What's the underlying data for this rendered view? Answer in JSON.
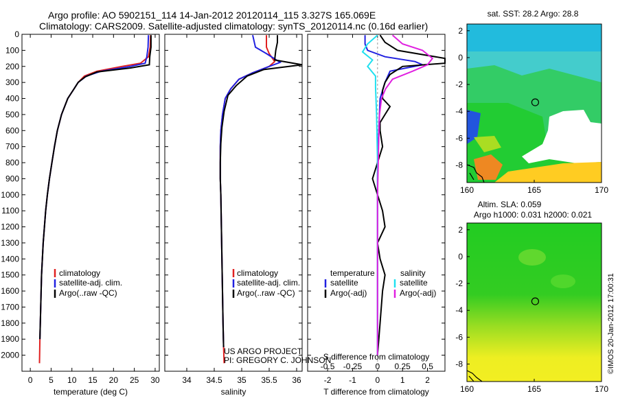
{
  "header": {
    "line1": "Argo profile: AO 5902151_114 14-Jan-2012 20120114_115 3.327S 165.069E",
    "line2": "Climatology: CARS2009. Satellite-adjusted climatology: synTS_20120114.nc (0.16d earlier)"
  },
  "side_label": "©IMOS 20-Jan-2012 17:00:31",
  "credit": {
    "project": "US ARGO PROJECT",
    "pi": "PI: GREGORY C. JOHNSON"
  },
  "colors": {
    "climatology": "#e02020",
    "satellite": "#2020e0",
    "argo": "#000000",
    "sal_sat": "#20e0f0",
    "sal_argo": "#e020e0"
  },
  "chart_data": [
    {
      "type": "line",
      "name": "temperature",
      "xlabel": "temperature (deg C)",
      "xlim": [
        -2,
        31
      ],
      "xticks": [
        "0",
        "5",
        "10",
        "15",
        "20",
        "25",
        "30"
      ],
      "xtick_values": [
        0,
        5,
        10,
        15,
        20,
        25,
        30
      ],
      "ylim": [
        2100,
        0
      ],
      "yticks": [
        "0",
        "100",
        "200",
        "300",
        "400",
        "500",
        "600",
        "700",
        "800",
        "900",
        "1000",
        "1100",
        "1200",
        "1300",
        "1400",
        "1500",
        "1600",
        "1700",
        "1800",
        "1900",
        "2000"
      ],
      "ytick_values": [
        0,
        100,
        200,
        300,
        400,
        500,
        600,
        700,
        800,
        900,
        1000,
        1100,
        1200,
        1300,
        1400,
        1500,
        1600,
        1700,
        1800,
        1900,
        2000
      ],
      "legend": [
        "climatology",
        "satellite-adj. clim.",
        "Argo(..raw -QC)"
      ],
      "series": [
        {
          "name": "climatology",
          "color": "#e02020",
          "x": [
            28.9,
            28.8,
            28.4,
            26.5,
            22,
            16,
            13,
            11.5,
            10.5,
            9,
            7.5,
            6.5,
            5.8,
            5.2,
            4.6,
            4.1,
            3.7,
            3.4,
            3.1,
            2.9,
            2.7,
            2.5,
            2.3,
            2.2
          ],
          "y": [
            5,
            80,
            140,
            180,
            200,
            230,
            260,
            300,
            340,
            400,
            500,
            600,
            700,
            800,
            900,
            1000,
            1100,
            1200,
            1300,
            1400,
            1500,
            1700,
            1900,
            2050
          ]
        },
        {
          "name": "satellite-adj. clim.",
          "color": "#2020e0",
          "x": [
            28.4,
            28.3,
            28.0,
            27.6,
            24,
            17,
            13.5,
            11.5,
            10.5,
            9,
            7.5,
            6.5,
            5.8,
            5.2,
            4.6,
            4.1,
            3.7,
            3.4,
            3.1,
            2.9,
            2.7,
            2.5,
            2.3
          ],
          "y": [
            5,
            80,
            140,
            180,
            200,
            230,
            260,
            300,
            340,
            400,
            500,
            600,
            700,
            800,
            900,
            1000,
            1100,
            1200,
            1300,
            1400,
            1500,
            1700,
            1900
          ]
        },
        {
          "name": "Argo(..raw -QC)",
          "color": "#000000",
          "x": [
            29.0,
            29.0,
            28.7,
            28.6,
            24,
            16,
            13.2,
            11.5,
            10.5,
            9,
            7.5,
            6.5,
            5.8,
            5.2,
            4.6,
            4.1,
            3.7,
            3.4,
            3.1,
            2.9,
            2.7,
            2.5,
            2.3
          ],
          "y": [
            5,
            80,
            140,
            190,
            210,
            235,
            265,
            300,
            340,
            400,
            500,
            600,
            700,
            800,
            900,
            1000,
            1100,
            1200,
            1300,
            1400,
            1500,
            1700,
            1900
          ]
        }
      ]
    },
    {
      "type": "line",
      "name": "salinity",
      "xlabel": "salinity",
      "xlim": [
        33.6,
        36.1
      ],
      "xticks": [
        "34",
        "34.5",
        "35",
        "35.5",
        "36"
      ],
      "xtick_values": [
        34,
        34.5,
        35,
        35.5,
        36
      ],
      "ylim": [
        2100,
        0
      ],
      "legend": [
        "climatology",
        "satellite-adj. clim.",
        "Argo(..raw -QC)"
      ],
      "series": [
        {
          "name": "climatology",
          "color": "#e02020",
          "x": [
            35.45,
            35.45,
            35.5,
            35.6,
            35.5,
            35.2,
            34.95,
            34.8,
            34.7,
            34.65,
            34.62,
            34.61,
            34.61,
            34.61,
            34.62,
            34.63,
            34.64,
            34.65,
            34.66,
            34.67,
            34.68
          ],
          "y": [
            5,
            80,
            120,
            170,
            200,
            240,
            280,
            340,
            400,
            500,
            600,
            700,
            800,
            900,
            1000,
            1200,
            1400,
            1600,
            1800,
            1950,
            2050
          ]
        },
        {
          "name": "satellite-adj. clim.",
          "color": "#2020e0",
          "x": [
            35.2,
            35.25,
            35.45,
            35.7,
            35.5,
            35.2,
            34.95,
            34.8,
            34.7,
            34.65,
            34.62,
            34.61,
            34.61,
            34.61,
            34.62,
            34.63,
            34.64,
            34.65,
            34.66,
            34.67
          ],
          "y": [
            5,
            80,
            120,
            175,
            200,
            240,
            280,
            340,
            400,
            500,
            600,
            700,
            800,
            900,
            1000,
            1200,
            1400,
            1600,
            1800,
            1950
          ]
        },
        {
          "name": "Argo(..raw -QC)",
          "color": "#000000",
          "x": [
            35.65,
            35.65,
            35.62,
            35.6,
            36.1,
            35.4,
            35.1,
            34.9,
            34.75,
            34.68,
            34.64,
            34.62,
            34.61,
            34.61,
            34.62,
            34.63,
            34.64,
            34.65,
            34.66,
            34.67
          ],
          "y": [
            5,
            50,
            100,
            160,
            190,
            220,
            260,
            320,
            380,
            480,
            580,
            680,
            800,
            900,
            1000,
            1200,
            1400,
            1600,
            1800,
            1950
          ]
        }
      ]
    },
    {
      "type": "line",
      "name": "difference",
      "xlabel": "T difference from climatology",
      "xlabel2": "S difference from climatology",
      "xlim": [
        -2.8,
        2.7
      ],
      "xticks": [
        "-2",
        "-1",
        "0",
        "1",
        "2"
      ],
      "xtick_values": [
        -2,
        -1,
        0,
        1,
        2
      ],
      "xticks2": [
        "-0.5",
        "-0.25",
        "0",
        "0.25",
        "0.5"
      ],
      "xtick2_values": [
        -0.5,
        -0.25,
        0,
        0.25,
        0.5
      ],
      "s_scale": 4,
      "ylim": [
        2100,
        0
      ],
      "legend_temperature_title": "temperature",
      "legend_salinity_title": "salinity",
      "legend_temperature": [
        "satellite",
        "Argo(-adj)"
      ],
      "legend_salinity": [
        "satellite",
        "Argo(-adj)"
      ],
      "series": [
        {
          "name": "T satellite",
          "color": "#2020e0",
          "x": [
            -0.5,
            -0.5,
            -0.4,
            0.3,
            1.5,
            1.8,
            0.5,
            0.3,
            0.1,
            0.05,
            0,
            0,
            0,
            0,
            0,
            0
          ],
          "y": [
            5,
            60,
            100,
            140,
            170,
            190,
            230,
            300,
            400,
            600,
            800,
            1000,
            1200,
            1500,
            1800,
            2000
          ]
        },
        {
          "name": "T Argo(-adj)",
          "color": "#000000",
          "x": [
            0.1,
            0.3,
            0.8,
            2.7,
            2.7,
            1.0,
            0.5,
            0.3,
            0.2,
            0.2,
            0.5,
            0.3,
            0.1,
            0.1,
            0.2,
            0,
            -0.2,
            0,
            0.2,
            0.3,
            0,
            0.1,
            0.3,
            0.2,
            0.1,
            0
          ],
          "y": [
            5,
            50,
            100,
            150,
            180,
            200,
            250,
            300,
            350,
            400,
            450,
            500,
            550,
            600,
            700,
            800,
            900,
            1000,
            1100,
            1200,
            1300,
            1400,
            1500,
            1600,
            1800,
            2000
          ]
        },
        {
          "name": "S satellite",
          "color": "#20e0f0",
          "x": [
            0,
            -0.1,
            -0.15,
            -0.05,
            -0.1,
            -0.02,
            -0.02,
            -0.01,
            0,
            0,
            0,
            0,
            0
          ],
          "y": [
            5,
            60,
            110,
            160,
            200,
            260,
            330,
            500,
            800,
            1000,
            1200,
            1600,
            2000
          ]
        },
        {
          "name": "S Argo(-adj)",
          "color": "#e020e0",
          "x": [
            0.15,
            0.25,
            0.45,
            0.55,
            0.5,
            0.35,
            0.15,
            0.08,
            0.04,
            0.02,
            0.01,
            0,
            0,
            0
          ],
          "y": [
            5,
            60,
            100,
            150,
            190,
            230,
            280,
            340,
            400,
            500,
            700,
            1000,
            1500,
            2000
          ]
        }
      ]
    },
    {
      "type": "heatmap",
      "name": "sst_map",
      "title": "sat. SST: 28.2 Argo: 28.8",
      "xlim": [
        160,
        170
      ],
      "ylim": [
        -9.3,
        2.5
      ],
      "xticks": [
        "160",
        "165",
        "170"
      ],
      "xtick_values": [
        160,
        165,
        170
      ],
      "yticks": [
        "2",
        "0",
        "-2",
        "-4",
        "-6",
        "-8"
      ],
      "ytick_values": [
        2,
        0,
        -2,
        -4,
        -6,
        -8
      ],
      "profile_location": {
        "lon": 165.069,
        "lat": -3.327
      }
    },
    {
      "type": "heatmap",
      "name": "sla_map",
      "title": "Altim. SLA: 0.059",
      "subtitle": "Argo h1000: 0.031 h2000: 0.021",
      "xlim": [
        160,
        170
      ],
      "ylim": [
        -9.3,
        2.5
      ],
      "xticks": [
        "160",
        "165",
        "170"
      ],
      "xtick_values": [
        160,
        165,
        170
      ],
      "yticks": [
        "2",
        "0",
        "-2",
        "-4",
        "-6",
        "-8"
      ],
      "ytick_values": [
        2,
        0,
        -2,
        -4,
        -6,
        -8
      ],
      "profile_location": {
        "lon": 165.069,
        "lat": -3.327
      }
    }
  ]
}
